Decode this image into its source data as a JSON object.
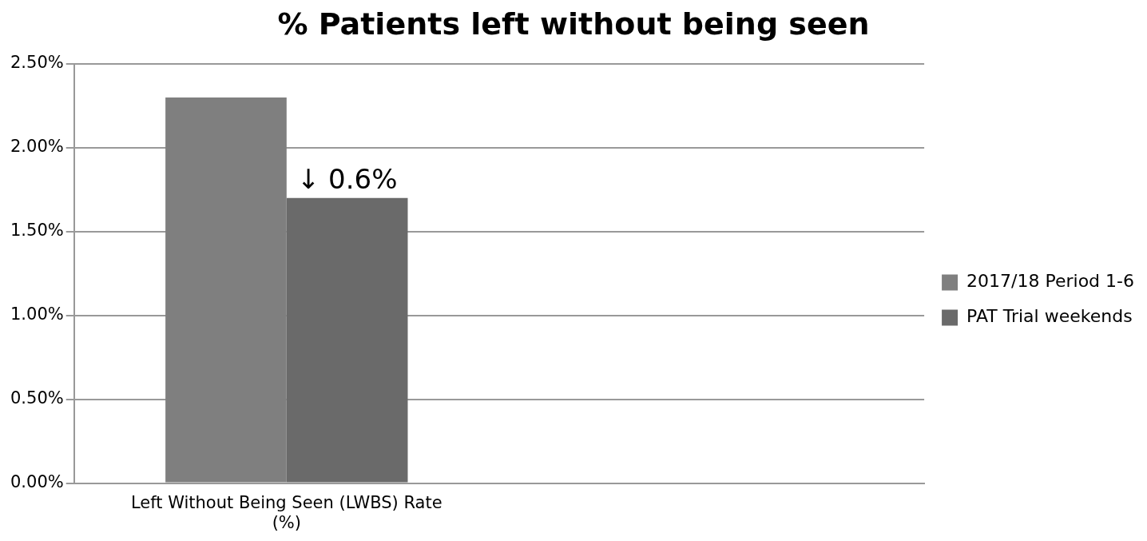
{
  "chart_data": {
    "type": "bar",
    "title": "% Patients left without being seen",
    "categories": [
      "Left Without Being Seen (LWBS) Rate (%)",
      null
    ],
    "series": [
      {
        "name": "2017/18 Period 1-6",
        "color": "#7f7f7f",
        "values": [
          2.3,
          null
        ]
      },
      {
        "name": "PAT Trial weekends",
        "color": "#6a6a6a",
        "values": [
          1.7,
          null
        ]
      }
    ],
    "ylim": [
      0,
      2.5
    ],
    "yticks": [
      {
        "value": 0,
        "label": "0.00%"
      },
      {
        "value": 0.5,
        "label": "0.50%"
      },
      {
        "value": 1,
        "label": "1.00%"
      },
      {
        "value": 1.5,
        "label": "1.50%"
      },
      {
        "value": 2,
        "label": "2.00%"
      },
      {
        "value": 2.5,
        "label": "2.50%"
      }
    ],
    "grid": "y",
    "legend": "right",
    "annotations": [
      {
        "text": "↓ 0.6%",
        "x": "Left Without Being Seen (LWBS) Rate (%)",
        "y": 1.7
      }
    ]
  }
}
